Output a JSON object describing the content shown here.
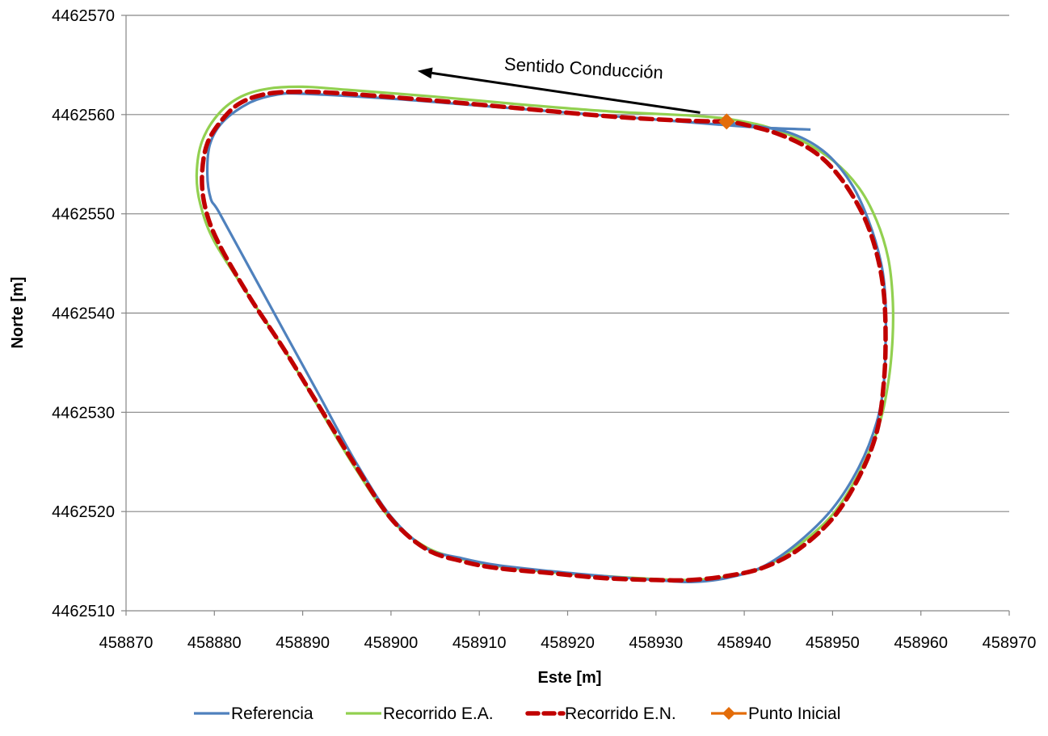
{
  "chart_data": {
    "type": "line",
    "title": "",
    "xlabel": "Este [m]",
    "ylabel": "Norte [m]",
    "xlim": [
      458870,
      458970
    ],
    "ylim": [
      4462510,
      4462570
    ],
    "xticks": [
      458870,
      458880,
      458890,
      458900,
      458910,
      458920,
      458930,
      458940,
      458950,
      458960,
      458970
    ],
    "yticks": [
      4462510,
      4462520,
      4462530,
      4462540,
      4462550,
      4462560,
      4462570
    ],
    "grid": "horizontal",
    "legend_position": "bottom",
    "annotation": {
      "text": "Sentido Conducción",
      "arrow_from": [
        458935,
        4462560.2
      ],
      "arrow_to": [
        458903,
        4462564.4
      ]
    },
    "series": [
      {
        "name": "Referencia",
        "color": "#4f81bd",
        "style": "solid",
        "x": [
          458947.5,
          458944,
          458940,
          458937,
          458930,
          458920,
          458910,
          458900,
          458890,
          458887,
          458884,
          458881,
          458879.5,
          458879.2,
          458879.6,
          458880.5,
          458884,
          458888,
          458892,
          458896,
          458900,
          458904,
          458908,
          458912,
          458918,
          458924,
          458930,
          458934,
          458938,
          458942,
          458946,
          458950,
          458953,
          458955,
          458955.8,
          458956,
          458956,
          458955.5,
          458954,
          458952,
          458949,
          458945,
          458940,
          458937.5
        ],
        "y": [
          4462558.5,
          4462558.6,
          4462558.8,
          4462559,
          4462559.5,
          4462560.2,
          4462560.9,
          4462561.6,
          4462562.1,
          4462562,
          4462561.2,
          4462559.3,
          4462557,
          4462554,
          4462551.5,
          4462550.2,
          4462544.5,
          4462538,
          4462531.5,
          4462525,
          4462519.5,
          4462516.3,
          4462515.3,
          4462514.6,
          4462514,
          4462513.5,
          4462513.1,
          4462512.9,
          4462513.3,
          4462514.4,
          4462516.8,
          4462520.3,
          4462524.5,
          4462529,
          4462533,
          4462537,
          4462541,
          4462545,
          4462549.5,
          4462553.2,
          4462556.3,
          4462558.2,
          4462559,
          4462559.2
        ]
      },
      {
        "name": "Recorrido E.A.",
        "color": "#92d050",
        "style": "solid",
        "x": [
          458938,
          458934,
          458925,
          458915,
          458905,
          458895,
          458890,
          458886,
          458883,
          458880.5,
          458878.6,
          458878,
          458878.4,
          458880,
          458884,
          458888,
          458892,
          458896,
          458900,
          458904,
          458908,
          458912,
          458918,
          458924,
          458930,
          458934,
          458938,
          458942,
          458946,
          458950,
          458953,
          458955.2,
          458956.3,
          458956.8,
          458956.8,
          458956.3,
          458955,
          458953,
          458950,
          458946,
          458942,
          458938
        ],
        "y": [
          4462559.6,
          4462559.9,
          4462560.3,
          4462561,
          4462561.8,
          4462562.5,
          4462562.8,
          4462562.6,
          4462561.8,
          4462560.1,
          4462557.3,
          4462554,
          4462551,
          4462547.2,
          4462541.6,
          4462536.2,
          4462530.2,
          4462524.3,
          4462519.2,
          4462516.4,
          4462515.2,
          4462514.5,
          4462513.9,
          4462513.5,
          4462513.2,
          4462513.1,
          4462513.4,
          4462514.3,
          4462516.5,
          4462519.7,
          4462523.9,
          4462528.5,
          4462533,
          4462537.5,
          4462541.6,
          4462545.5,
          4462549.3,
          4462552.6,
          4462555.4,
          4462557.6,
          4462558.9,
          4462559.6
        ]
      },
      {
        "name": "Recorrido E.N.",
        "color": "#c00000",
        "style": "dashed",
        "x": [
          458938,
          458933,
          458925,
          458915,
          458905,
          458895,
          458890,
          458886,
          458883,
          458881,
          458879.2,
          458878.6,
          458879,
          458880.5,
          458884,
          458888,
          458892,
          458896,
          458900,
          458904,
          458908,
          458912,
          458918,
          458924,
          458930,
          458934,
          458938,
          458942,
          458946,
          458950,
          458953,
          458955,
          458955.8,
          458956,
          458955.8,
          458955,
          458953.5,
          458951,
          458948,
          458944,
          458940,
          458938
        ],
        "y": [
          4462559.3,
          4462559.4,
          4462559.8,
          4462560.6,
          4462561.4,
          4462562.1,
          4462562.3,
          4462562.1,
          4462561.2,
          4462559.6,
          4462557.1,
          4462553.8,
          4462550.5,
          4462547,
          4462541.6,
          4462536.2,
          4462530.4,
          4462524.6,
          4462519.3,
          4462516.2,
          4462515,
          4462514.3,
          4462513.8,
          4462513.3,
          4462513.1,
          4462513.1,
          4462513.5,
          4462514.3,
          4462516.1,
          4462519.3,
          4462523.5,
          4462528,
          4462533,
          4462537.5,
          4462542,
          4462546,
          4462549.8,
          4462553.5,
          4462556.2,
          4462558,
          4462559,
          4462559.3
        ]
      },
      {
        "name": "Punto Inicial",
        "color": "#e36c09",
        "style": "marker",
        "x": [
          458938
        ],
        "y": [
          4462559.3
        ]
      }
    ]
  }
}
